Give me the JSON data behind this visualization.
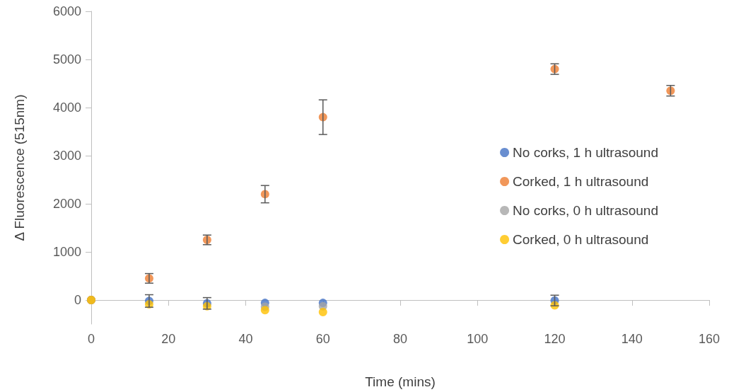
{
  "chart_data": {
    "type": "scatter",
    "xlabel": "Time (mins)",
    "ylabel": "Δ Fluorescence (515nm)",
    "x": [
      0,
      15,
      30,
      45,
      60,
      120
    ],
    "series": [
      {
        "name": "No corks, 1 h ultrasound",
        "color": "#4472c4",
        "values": [
          0,
          -20,
          -70,
          -60,
          -60,
          -10
        ],
        "errors": [
          null,
          130,
          120,
          null,
          null,
          110
        ]
      },
      {
        "name": "Corked, 1 h ultrasound",
        "color": "#ed7d31",
        "x": [
          0,
          15,
          30,
          45,
          60,
          120,
          150
        ],
        "values": [
          0,
          450,
          1250,
          2200,
          3800,
          4800,
          4350
        ],
        "errors": [
          null,
          100,
          100,
          180,
          360,
          110,
          110
        ]
      },
      {
        "name": "No corks, 0 h ultrasound",
        "color": "#a5a5a5",
        "values": [
          0,
          null,
          null,
          -140,
          -130,
          null
        ]
      },
      {
        "name": "Corked, 0 h ultrasound",
        "color": "#ffc000",
        "values": [
          0,
          -90,
          -130,
          -210,
          -250,
          -110
        ]
      }
    ],
    "xlim": [
      0,
      160
    ],
    "xticks": [
      0,
      20,
      40,
      60,
      80,
      100,
      120,
      140,
      160
    ],
    "ylim": [
      -500,
      6000
    ],
    "yticks": [
      0,
      1000,
      2000,
      3000,
      4000,
      5000,
      6000
    ],
    "grid": false,
    "legend": "right",
    "marker": "circle"
  }
}
